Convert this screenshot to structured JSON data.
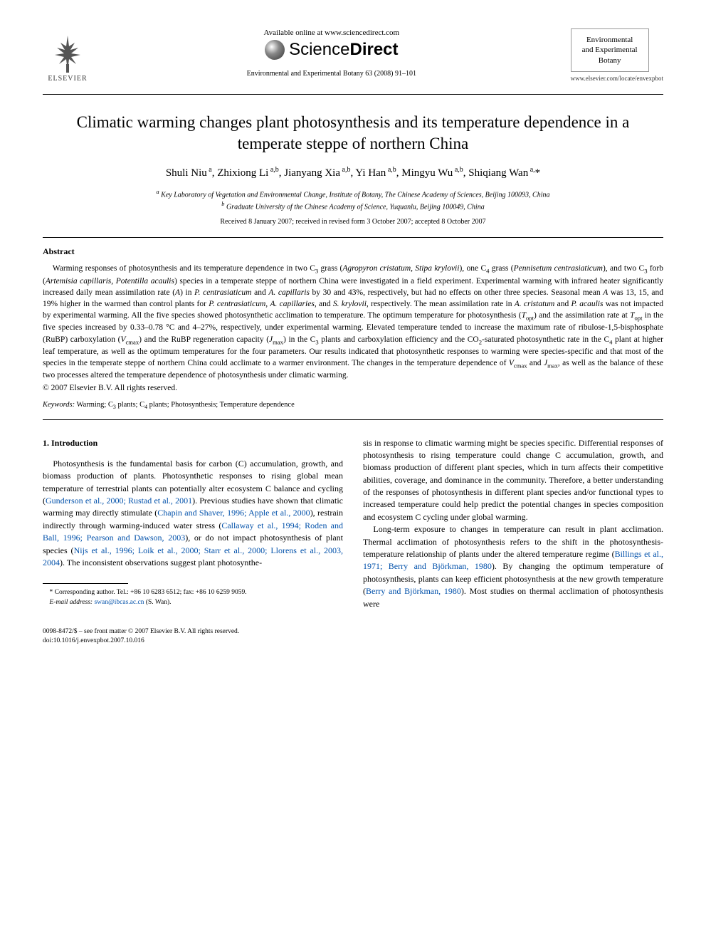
{
  "header": {
    "available_online": "Available online at www.sciencedirect.com",
    "sciencedirect": {
      "prefix": "Science",
      "suffix": "Direct"
    },
    "journal_ref": "Environmental and Experimental Botany 63 (2008) 91–101",
    "elsevier_label": "ELSEVIER",
    "journal_cover_lines": [
      "Environmental",
      "and Experimental",
      "Botany"
    ],
    "journal_link": "www.elsevier.com/locate/envexpbot"
  },
  "title": "Climatic warming changes plant photosynthesis and its temperature dependence in a temperate steppe of northern China",
  "authors_html": "Shuli Niu<sup> a</sup>, Zhixiong Li<sup> a,b</sup>, Jianyang Xia<sup> a,b</sup>, Yi Han<sup> a,b</sup>, Mingyu Wu<sup> a,b</sup>, Shiqiang Wan<sup> a,</sup>*",
  "affiliations": {
    "a": "Key Laboratory of Vegetation and Environmental Change, Institute of Botany, The Chinese Academy of Sciences, Beijing 100093, China",
    "b": "Graduate University of the Chinese Academy of Science, Yuquanlu, Beijing 100049, China"
  },
  "dates": "Received 8 January 2007; received in revised form 3 October 2007; accepted 8 October 2007",
  "abstract": {
    "heading": "Abstract",
    "body_html": "Warming responses of photosynthesis and its temperature dependence in two C<sub>3</sub> grass (<em>Agropyron cristatum</em>, <em>Stipa krylovii</em>), one C<sub>4</sub> grass (<em>Pennisetum centrasiaticum</em>), and two C<sub>3</sub> forb (<em>Artemisia capillaris</em>, <em>Potentilla acaulis</em>) species in a temperate steppe of northern China were investigated in a field experiment. Experimental warming with infrared heater significantly increased daily mean assimilation rate (<em>A</em>) in <em>P. centrasiaticum</em> and <em>A. capillaris</em> by 30 and 43%, respectively, but had no effects on other three species. Seasonal mean <em>A</em> was 13, 15, and 19% higher in the warmed than control plants for <em>P. centrasiaticum</em>, <em>A. capillaries</em>, and <em>S. krylovii</em>, respectively. The mean assimilation rate in <em>A. cristatum</em> and <em>P. acaulis</em> was not impacted by experimental warming. All the five species showed photosynthetic acclimation to temperature. The optimum temperature for photosynthesis (<em>T</em><sub>opt</sub>) and the assimilation rate at <em>T</em><sub>opt</sub> in the five species increased by 0.33–0.78 °C and 4–27%, respectively, under experimental warming. Elevated temperature tended to increase the maximum rate of ribulose-1,5-bisphosphate (RuBP) carboxylation (<em>V</em><sub>cmax</sub>) and the RuBP regeneration capacity (<em>J</em><sub>max</sub>) in the C<sub>3</sub> plants and carboxylation efficiency and the CO<sub>2</sub>-saturated photosynthetic rate in the C<sub>4</sub> plant at higher leaf temperature, as well as the optimum temperatures for the four parameters. Our results indicated that photosynthetic responses to warming were species-specific and that most of the species in the temperate steppe of northern China could acclimate to a warmer environment. The changes in the temperature dependence of <em>V</em><sub>cmax</sub> and <em>J</em><sub>max</sub>, as well as the balance of these two processes altered the temperature dependence of photosynthesis under climatic warming.",
    "copyright": "© 2007 Elsevier B.V. All rights reserved."
  },
  "keywords": {
    "label": "Keywords:",
    "text_html": "Warming; C<sub>3</sub> plants; C<sub>4</sub> plants; Photosynthesis; Temperature dependence"
  },
  "intro": {
    "heading": "1.  Introduction",
    "col1_html": "Photosynthesis is the fundamental basis for carbon (C) accumulation, growth, and biomass production of plants. Photosynthetic responses to rising global mean temperature of terrestrial plants can potentially alter ecosystem C balance and cycling (<span class=\"link\">Gunderson et al., 2000; Rustad et al., 2001</span>). Previous studies have shown that climatic warming may directly stimulate (<span class=\"link\">Chapin and Shaver, 1996; Apple et al., 2000</span>), restrain indirectly through warming-induced water stress (<span class=\"link\">Callaway et al., 1994; Roden and Ball, 1996; Pearson and Dawson, 2003</span>), or do not impact photosynthesis of plant species (<span class=\"link\">Nijs et al., 1996; Loik et al., 2000; Starr et al., 2000; Llorens et al., 2003, 2004</span>). The inconsistent observations suggest plant photosynthe-",
    "col2_p1_html": "sis in response to climatic warming might be species specific. Differential responses of photosynthesis to rising temperature could change C accumulation, growth, and biomass production of different plant species, which in turn affects their competitive abilities, coverage, and dominance in the community. Therefore, a better understanding of the responses of photosynthesis in different plant species and/or functional types to increased temperature could help predict the potential changes in species composition and ecosystem C cycling under global warming.",
    "col2_p2_html": "Long-term exposure to changes in temperature can result in plant acclimation. Thermal acclimation of photosynthesis refers to the shift in the photosynthesis-temperature relationship of plants under the altered temperature regime (<span class=\"link\">Billings et al., 1971; Berry and Björkman, 1980</span>). By changing the optimum temperature of photosynthesis, plants can keep efficient photosynthesis at the new growth temperature (<span class=\"link\">Berry and Björkman, 1980</span>). Most studies on thermal acclimation of photosynthesis were"
  },
  "footnote": {
    "corresponding": "* Corresponding author. Tel.: +86 10 6283 6512; fax: +86 10 6259 9059.",
    "email_label": "E-mail address:",
    "email": "swan@ibcas.ac.cn",
    "email_name": "(S. Wan)."
  },
  "footer": {
    "line1": "0098-8472/$ – see front matter © 2007 Elsevier B.V. All rights reserved.",
    "line2": "doi:10.1016/j.envexpbot.2007.10.016"
  },
  "colors": {
    "link": "#0050aa",
    "text": "#000000",
    "background": "#ffffff",
    "rule": "#000000"
  },
  "typography": {
    "body_font": "Times New Roman",
    "title_size_pt": 18,
    "author_size_pt": 12,
    "abstract_size_pt": 9,
    "body_size_pt": 10
  }
}
